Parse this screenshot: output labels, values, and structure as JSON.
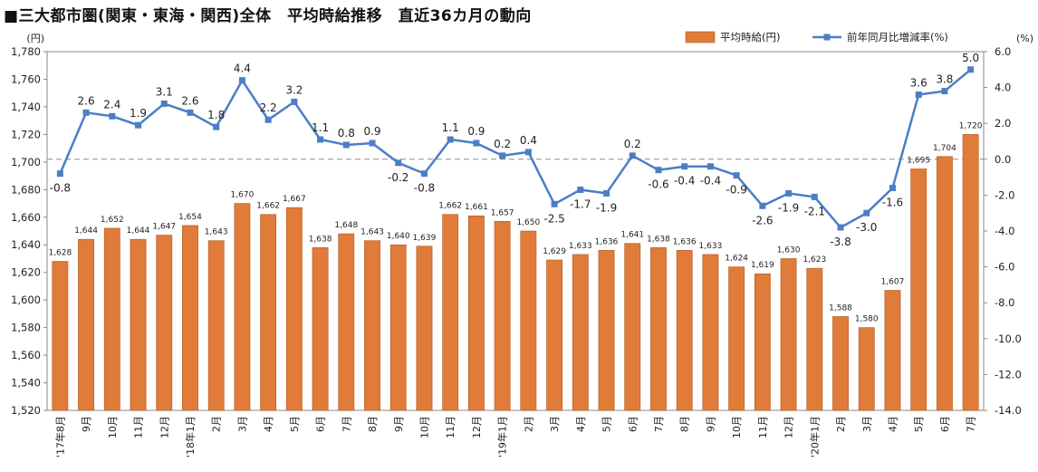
{
  "title": "■三大都市圏(関東・東海・関西)全体　平均時給推移　直近36カ月の動向",
  "chart_data": {
    "type": "bar+line",
    "categories": [
      "'17年8月",
      "9月",
      "10月",
      "11月",
      "12月",
      "'18年1月",
      "2月",
      "3月",
      "4月",
      "5月",
      "6月",
      "7月",
      "8月",
      "9月",
      "10月",
      "11月",
      "12月",
      "'19年1月",
      "2月",
      "3月",
      "4月",
      "5月",
      "6月",
      "7月",
      "8月",
      "9月",
      "10月",
      "11月",
      "12月",
      "'20年1月",
      "2月",
      "3月",
      "4月",
      "5月",
      "6月",
      "7月"
    ],
    "series": [
      {
        "name": "平均時給(円)",
        "type": "bar",
        "axis": "left",
        "color": "#E07B39",
        "values": [
          1628,
          1644,
          1652,
          1644,
          1647,
          1654,
          1643,
          1670,
          1662,
          1667,
          1638,
          1648,
          1643,
          1640,
          1639,
          1662,
          1661,
          1657,
          1650,
          1629,
          1633,
          1636,
          1641,
          1638,
          1636,
          1633,
          1624,
          1619,
          1630,
          1623,
          1588,
          1580,
          1607,
          1695,
          1704,
          1720
        ]
      },
      {
        "name": "前年同月比増減率(%)",
        "type": "line",
        "axis": "right",
        "color": "#4A7EC6",
        "values": [
          -0.8,
          2.6,
          2.4,
          1.9,
          3.1,
          2.6,
          1.8,
          4.4,
          2.2,
          3.2,
          1.1,
          0.8,
          0.9,
          -0.2,
          -0.8,
          1.1,
          0.9,
          0.2,
          0.4,
          -2.5,
          -1.7,
          -1.9,
          0.2,
          -0.6,
          -0.4,
          -0.4,
          -0.9,
          -2.6,
          -1.9,
          -2.1,
          -3.8,
          -3.0,
          -1.6,
          3.6,
          3.8,
          5.0
        ]
      }
    ],
    "bar_value_labels": [
      "1,628",
      "1,644",
      "1,652",
      "1,644",
      "1,647",
      "1,654",
      "1,643",
      "1,670",
      "1,662",
      "1,667",
      "1,638",
      "1,648",
      "1,643",
      "1,640",
      "1,639",
      "1,662",
      "1,661",
      "1,657",
      "1,650",
      "1,629",
      "1,633",
      "1,636",
      "1,641",
      "1,638",
      "1,636",
      "1,633",
      "1,624",
      "1,619",
      "1,630",
      "1,623",
      "1,588",
      "1,580",
      "1,607",
      "1,695",
      "1,704",
      "1,720"
    ],
    "line_value_labels": [
      "-0.8",
      "2.6",
      "2.4",
      "1.9",
      "3.1",
      "2.6",
      "1.8",
      "4.4",
      "2.2",
      "3.2",
      "1.1",
      "0.8",
      "0.9",
      "-0.2",
      "-0.8",
      "1.1",
      "0.9",
      "0.2",
      "0.4",
      "-2.5",
      "-1.7",
      "-1.9",
      "0.2",
      "-0.6",
      "-0.4",
      "-0.4",
      "-0.9",
      "-2.6",
      "-1.9",
      "-2.1",
      "-3.8",
      "-3.0",
      "-1.6",
      "3.6",
      "3.8",
      "5.0"
    ],
    "line_label_below": [
      0,
      13,
      14,
      19,
      20,
      21,
      23,
      24,
      25,
      26,
      27,
      28,
      29,
      30,
      31,
      32
    ],
    "left_axis": {
      "unit": "(円)",
      "min": 1520,
      "max": 1780,
      "tick_labels": [
        "1,780",
        "1,760",
        "1,740",
        "1,720",
        "1,700",
        "1,680",
        "1,660",
        "1,640",
        "1,620",
        "1,600",
        "1,580",
        "1,560",
        "1,540",
        "1,520"
      ]
    },
    "right_axis": {
      "unit": "(%)",
      "min": -14,
      "max": 6,
      "tick_labels": [
        "6.0",
        "4.0",
        "2.0",
        "0.0",
        "-2.0",
        "-4.0",
        "-6.0",
        "-8.0",
        "-10.0",
        "-12.0",
        "-14.0"
      ]
    },
    "zero_line": "dashed",
    "grid": false,
    "legend_position": "top-right"
  }
}
